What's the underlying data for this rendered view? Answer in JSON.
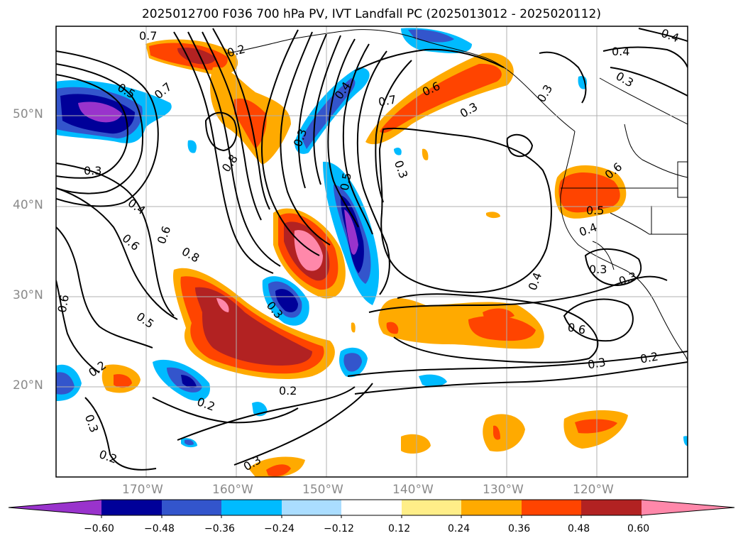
{
  "title": "2025012700 F036 700 hPa PV, IVT Landfall PC (2025013012 - 2025020112)",
  "axes": {
    "lat_labels": [
      "50°N",
      "40°N",
      "30°N",
      "20°N"
    ],
    "lon_labels": [
      "170°W",
      "160°W",
      "150°W",
      "140°W",
      "130°W",
      "120°W"
    ]
  },
  "colorbar": {
    "ticks": [
      "−0.60",
      "−0.48",
      "−0.36",
      "−0.24",
      "−0.12",
      "0.12",
      "0.24",
      "0.36",
      "0.48",
      "0.60"
    ],
    "colors": [
      "#9933cc",
      "#000099",
      "#3355cc",
      "#00bbff",
      "#aaddff",
      "#ffffff",
      "#ffee88",
      "#ffaa00",
      "#ff4400",
      "#b22222",
      "#ff88aa"
    ]
  },
  "contour_labels": [
    "0.7",
    "0.2",
    "0.5",
    "0.7",
    "0.3",
    "0.8",
    "0.4",
    "0.6",
    "0.6",
    "0.8",
    "0.5",
    "0.6",
    "0.2",
    "0.3",
    "0.2",
    "0.2",
    "0.3",
    "0.2",
    "0.3",
    "0.4",
    "0.3",
    "0.5",
    "0.7",
    "0.6",
    "0.3",
    "0.3",
    "0.4",
    "0.3",
    "0.6",
    "0.5",
    "0.4",
    "0.3",
    "0.3",
    "0.4",
    "0.6",
    "0.3",
    "0.2",
    "0.4",
    "0.3"
  ]
}
